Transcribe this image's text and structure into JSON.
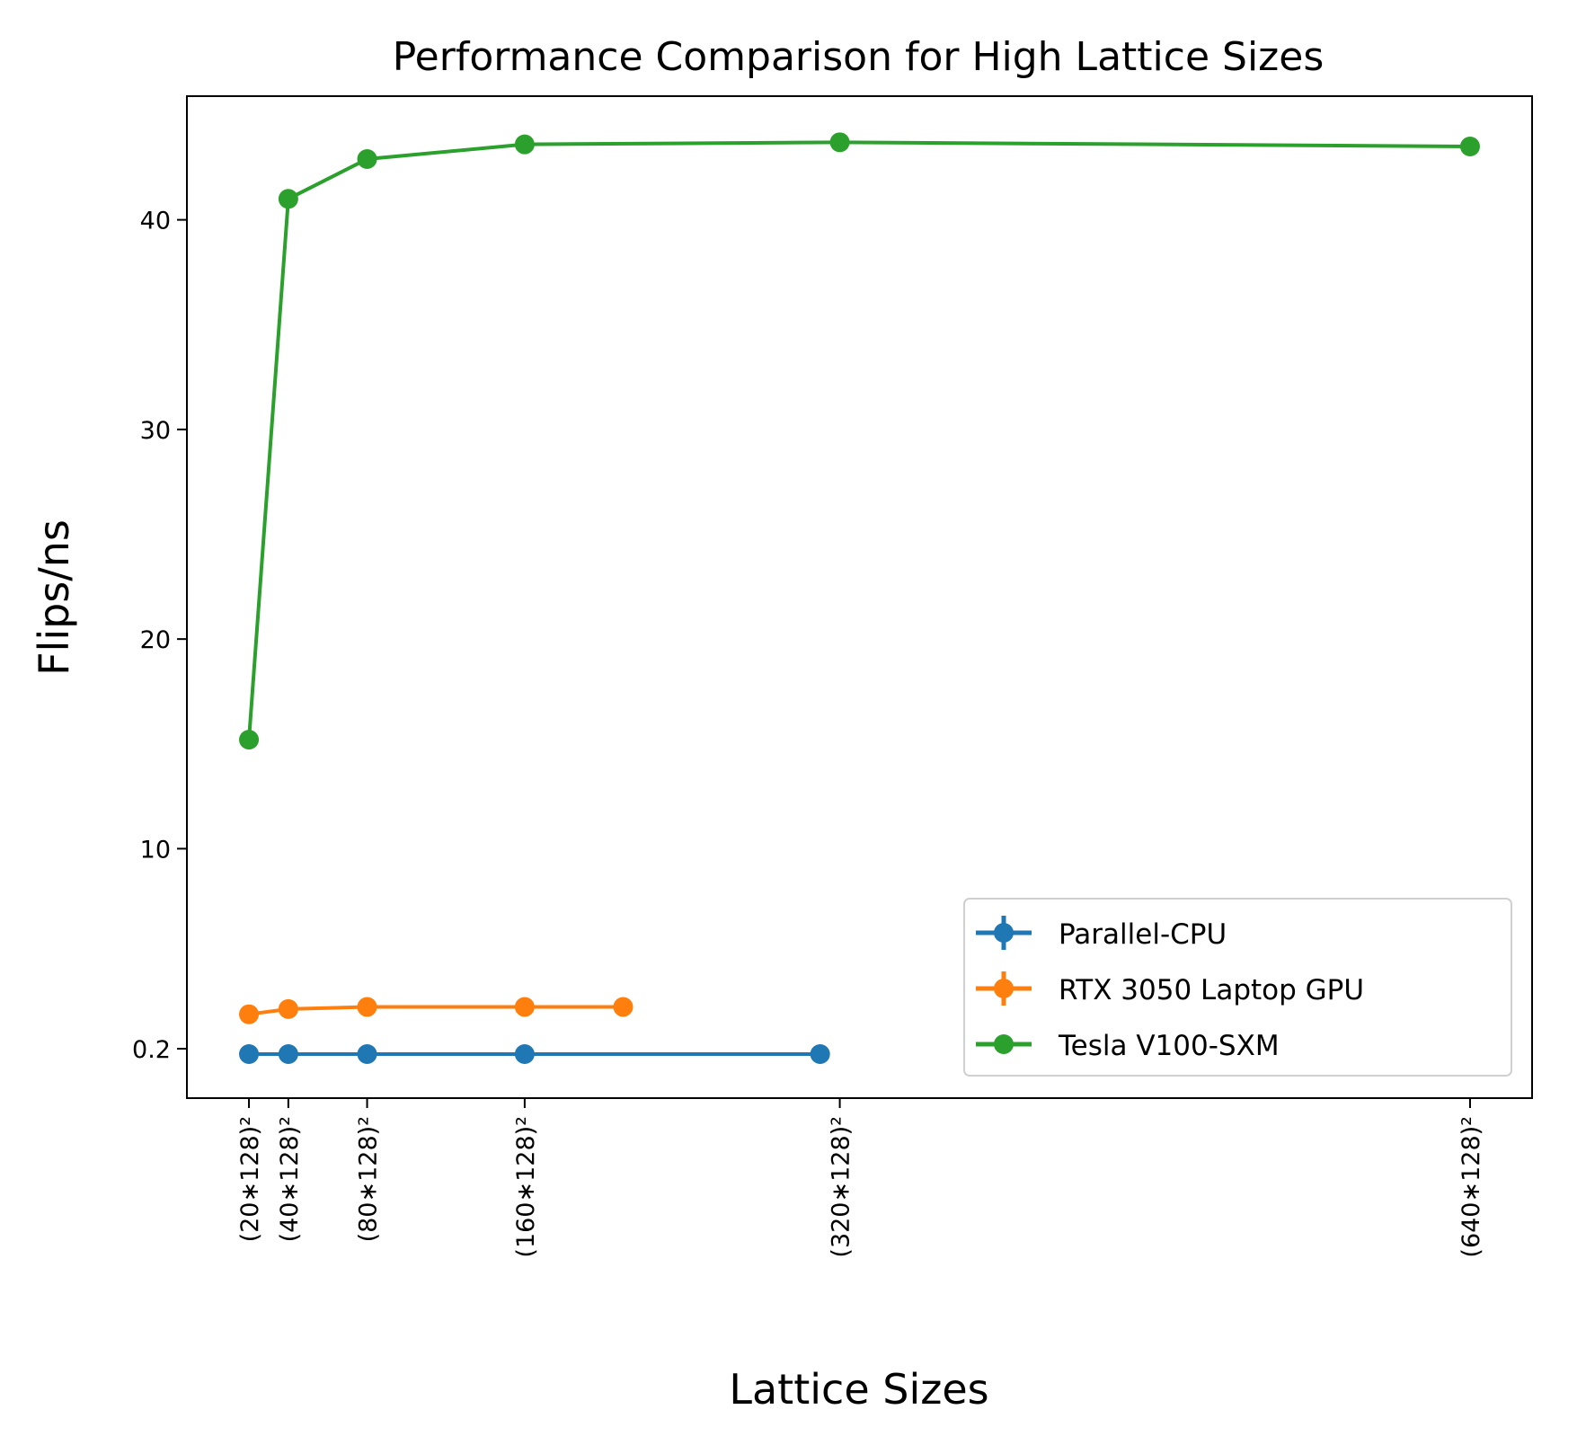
{
  "chart_data": {
    "type": "line",
    "title": "Performance Comparison for High Lattice Sizes",
    "xlabel": "Lattice Sizes",
    "ylabel": "Flips/ns",
    "xlim": [
      -11.5,
      671.5
    ],
    "ylim": [
      -1.9,
      45.9
    ],
    "xticks": [
      {
        "value": 20,
        "label": "(20∗128)²"
      },
      {
        "value": 40,
        "label": "(40∗128)²"
      },
      {
        "value": 80,
        "label": "(80∗128)²"
      },
      {
        "value": 160,
        "label": "(160∗128)²"
      },
      {
        "value": 320,
        "label": "(320∗128)²"
      },
      {
        "value": 640,
        "label": "(640∗128)²"
      }
    ],
    "yticks": [
      {
        "value": 0.2,
        "label": "0.2"
      },
      {
        "value": 10,
        "label": "10"
      },
      {
        "value": 20,
        "label": "20"
      },
      {
        "value": 30,
        "label": "30"
      },
      {
        "value": 40,
        "label": "40"
      }
    ],
    "grid": false,
    "legend_position": "bottom-right",
    "series": [
      {
        "name": "Parallel-CPU",
        "color": "#1f77b4",
        "errorbar": true,
        "x": [
          20,
          40,
          80,
          160,
          310
        ],
        "y": [
          0.2,
          0.2,
          0.2,
          0.2,
          0.2
        ]
      },
      {
        "name": "RTX 3050 Laptop GPU",
        "color": "#ff7f0e",
        "errorbar": true,
        "x": [
          20,
          40,
          80,
          160,
          210
        ],
        "y": [
          2.1,
          2.35,
          2.45,
          2.45,
          2.45
        ]
      },
      {
        "name": "Tesla V100-SXM",
        "color": "#2ca02c",
        "errorbar": false,
        "x": [
          20,
          40,
          80,
          160,
          320,
          640
        ],
        "y": [
          15.2,
          41.0,
          42.9,
          43.6,
          43.7,
          43.5
        ]
      }
    ]
  }
}
